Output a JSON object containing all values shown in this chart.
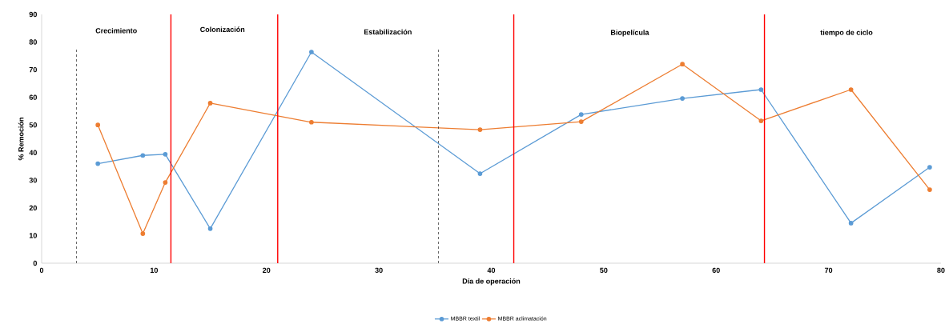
{
  "chart_data": {
    "type": "line",
    "xlabel": "Día de operación",
    "ylabel": "% Remoción",
    "x": [
      5,
      9,
      11,
      15,
      24,
      39,
      48,
      57,
      64,
      72,
      79
    ],
    "series": [
      {
        "name": "MBBR textil",
        "color": "#5b9bd5",
        "values": [
          36,
          39,
          39.4,
          12.5,
          76.4,
          32.4,
          53.8,
          59.6,
          62.8,
          14.5,
          34.7
        ]
      },
      {
        "name": "MBBR aclimatación",
        "color": "#ed7d31",
        "values": [
          50,
          10.7,
          29.2,
          57.9,
          51,
          48.3,
          51.2,
          72,
          51.5,
          62.8,
          26.6
        ]
      }
    ],
    "xlim": [
      0,
      80
    ],
    "xticks": [
      0,
      10,
      20,
      30,
      40,
      50,
      60,
      70,
      80
    ],
    "ylim": [
      0,
      90
    ],
    "yticks": [
      0,
      10,
      20,
      30,
      40,
      50,
      60,
      70,
      80,
      90
    ],
    "ref_lines": [
      {
        "axis": "x",
        "value": 3.1,
        "color": "#000000",
        "line_style": "dashed"
      },
      {
        "axis": "x",
        "value": 11.5,
        "color": "#ff0000",
        "line_style": "solid"
      },
      {
        "axis": "x",
        "value": 21,
        "color": "#ff0000",
        "line_style": "solid"
      },
      {
        "axis": "x",
        "value": 35.3,
        "color": "#000000",
        "line_style": "dashed"
      },
      {
        "axis": "x",
        "value": 42,
        "color": "#ff0000",
        "line_style": "solid"
      },
      {
        "axis": "x",
        "value": 64.3,
        "color": "#ff0000",
        "line_style": "solid"
      }
    ],
    "annotations": [
      "Crecimiento",
      "Colonización",
      "Estabilización",
      "Biopelícula",
      "tiempo de ciclo"
    ],
    "grid": false,
    "legend": "bottom",
    "marker": "circle",
    "line_style": "solid"
  }
}
